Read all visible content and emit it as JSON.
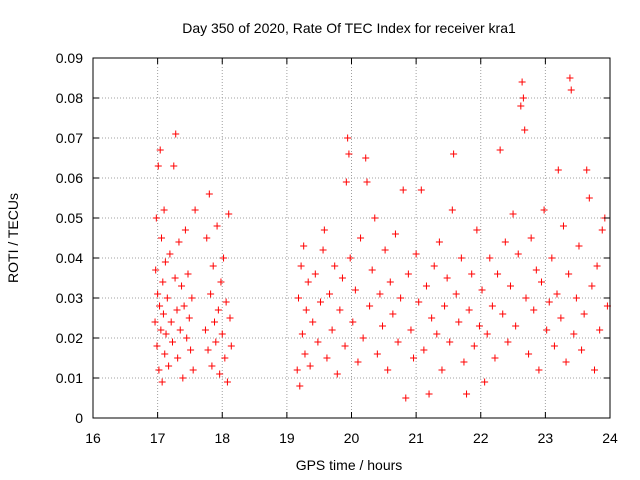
{
  "chart_data": {
    "type": "scatter",
    "title": "Day 350 of 2020, Rate Of TEC Index for receiver kra1",
    "xlabel": "GPS time / hours",
    "ylabel": "ROTI / TECUs",
    "xlim": [
      16,
      24
    ],
    "ylim": [
      0,
      0.09
    ],
    "xticks": [
      "16",
      "17",
      "18",
      "19",
      "20",
      "21",
      "22",
      "23",
      "24"
    ],
    "yticks": [
      "0",
      "0.01",
      "0.02",
      "0.03",
      "0.04",
      "0.05",
      "0.06",
      "0.07",
      "0.08",
      "0.09"
    ],
    "grid": true,
    "marker": "+",
    "color": "#ff0000",
    "series": [
      {
        "name": "ROTI",
        "points": [
          [
            16.96,
            0.024
          ],
          [
            16.97,
            0.037
          ],
          [
            16.98,
            0.05
          ],
          [
            16.99,
            0.018
          ],
          [
            17.0,
            0.031
          ],
          [
            17.01,
            0.063
          ],
          [
            17.02,
            0.012
          ],
          [
            17.03,
            0.028
          ],
          [
            17.04,
            0.067
          ],
          [
            17.05,
            0.022
          ],
          [
            17.06,
            0.045
          ],
          [
            17.07,
            0.009
          ],
          [
            17.08,
            0.034
          ],
          [
            17.09,
            0.026
          ],
          [
            17.1,
            0.052
          ],
          [
            17.11,
            0.016
          ],
          [
            17.12,
            0.039
          ],
          [
            17.13,
            0.021
          ],
          [
            17.15,
            0.03
          ],
          [
            17.17,
            0.013
          ],
          [
            17.19,
            0.041
          ],
          [
            17.21,
            0.024
          ],
          [
            17.23,
            0.019
          ],
          [
            17.25,
            0.063
          ],
          [
            17.27,
            0.035
          ],
          [
            17.28,
            0.071
          ],
          [
            17.3,
            0.027
          ],
          [
            17.31,
            0.015
          ],
          [
            17.33,
            0.044
          ],
          [
            17.35,
            0.022
          ],
          [
            17.37,
            0.033
          ],
          [
            17.39,
            0.01
          ],
          [
            17.41,
            0.028
          ],
          [
            17.43,
            0.047
          ],
          [
            17.45,
            0.02
          ],
          [
            17.47,
            0.036
          ],
          [
            17.49,
            0.025
          ],
          [
            17.51,
            0.017
          ],
          [
            17.53,
            0.03
          ],
          [
            17.55,
            0.012
          ],
          [
            17.58,
            0.052
          ],
          [
            17.74,
            0.022
          ],
          [
            17.76,
            0.045
          ],
          [
            17.78,
            0.017
          ],
          [
            17.8,
            0.056
          ],
          [
            17.82,
            0.031
          ],
          [
            17.84,
            0.013
          ],
          [
            17.86,
            0.038
          ],
          [
            17.88,
            0.024
          ],
          [
            17.9,
            0.019
          ],
          [
            17.92,
            0.048
          ],
          [
            17.94,
            0.027
          ],
          [
            17.96,
            0.011
          ],
          [
            17.98,
            0.034
          ],
          [
            18.0,
            0.021
          ],
          [
            18.02,
            0.04
          ],
          [
            18.04,
            0.015
          ],
          [
            18.06,
            0.029
          ],
          [
            18.08,
            0.009
          ],
          [
            18.1,
            0.051
          ],
          [
            18.12,
            0.025
          ],
          [
            18.14,
            0.018
          ],
          [
            19.16,
            0.012
          ],
          [
            19.18,
            0.03
          ],
          [
            19.2,
            0.008
          ],
          [
            19.22,
            0.038
          ],
          [
            19.24,
            0.021
          ],
          [
            19.26,
            0.043
          ],
          [
            19.28,
            0.016
          ],
          [
            19.3,
            0.027
          ],
          [
            19.33,
            0.034
          ],
          [
            19.36,
            0.013
          ],
          [
            19.4,
            0.024
          ],
          [
            19.44,
            0.036
          ],
          [
            19.48,
            0.019
          ],
          [
            19.52,
            0.029
          ],
          [
            19.56,
            0.042
          ],
          [
            19.58,
            0.047
          ],
          [
            19.62,
            0.015
          ],
          [
            19.66,
            0.031
          ],
          [
            19.7,
            0.022
          ],
          [
            19.74,
            0.038
          ],
          [
            19.78,
            0.011
          ],
          [
            19.82,
            0.027
          ],
          [
            19.86,
            0.035
          ],
          [
            19.9,
            0.018
          ],
          [
            19.92,
            0.059
          ],
          [
            19.94,
            0.07
          ],
          [
            19.96,
            0.066
          ],
          [
            19.98,
            0.04
          ],
          [
            20.02,
            0.024
          ],
          [
            20.06,
            0.032
          ],
          [
            20.1,
            0.014
          ],
          [
            20.14,
            0.045
          ],
          [
            20.18,
            0.02
          ],
          [
            20.22,
            0.065
          ],
          [
            20.24,
            0.059
          ],
          [
            20.28,
            0.028
          ],
          [
            20.32,
            0.037
          ],
          [
            20.36,
            0.05
          ],
          [
            20.4,
            0.016
          ],
          [
            20.44,
            0.031
          ],
          [
            20.48,
            0.023
          ],
          [
            20.52,
            0.042
          ],
          [
            20.56,
            0.012
          ],
          [
            20.6,
            0.034
          ],
          [
            20.64,
            0.026
          ],
          [
            20.68,
            0.046
          ],
          [
            20.72,
            0.019
          ],
          [
            20.76,
            0.03
          ],
          [
            20.8,
            0.057
          ],
          [
            20.84,
            0.005
          ],
          [
            20.88,
            0.036
          ],
          [
            20.92,
            0.022
          ],
          [
            20.96,
            0.015
          ],
          [
            21.0,
            0.041
          ],
          [
            21.04,
            0.029
          ],
          [
            21.08,
            0.057
          ],
          [
            21.12,
            0.017
          ],
          [
            21.16,
            0.033
          ],
          [
            21.2,
            0.006
          ],
          [
            21.24,
            0.025
          ],
          [
            21.28,
            0.038
          ],
          [
            21.32,
            0.021
          ],
          [
            21.36,
            0.044
          ],
          [
            21.4,
            0.012
          ],
          [
            21.44,
            0.028
          ],
          [
            21.48,
            0.035
          ],
          [
            21.52,
            0.019
          ],
          [
            21.56,
            0.052
          ],
          [
            21.58,
            0.066
          ],
          [
            21.62,
            0.031
          ],
          [
            21.66,
            0.024
          ],
          [
            21.7,
            0.04
          ],
          [
            21.74,
            0.014
          ],
          [
            21.78,
            0.006
          ],
          [
            21.82,
            0.027
          ],
          [
            21.86,
            0.036
          ],
          [
            21.9,
            0.018
          ],
          [
            21.94,
            0.047
          ],
          [
            21.98,
            0.023
          ],
          [
            22.02,
            0.032
          ],
          [
            22.06,
            0.009
          ],
          [
            22.1,
            0.021
          ],
          [
            22.14,
            0.04
          ],
          [
            22.18,
            0.028
          ],
          [
            22.22,
            0.015
          ],
          [
            22.26,
            0.036
          ],
          [
            22.3,
            0.067
          ],
          [
            22.34,
            0.026
          ],
          [
            22.38,
            0.044
          ],
          [
            22.42,
            0.019
          ],
          [
            22.46,
            0.033
          ],
          [
            22.5,
            0.051
          ],
          [
            22.54,
            0.023
          ],
          [
            22.58,
            0.041
          ],
          [
            22.62,
            0.078
          ],
          [
            22.64,
            0.084
          ],
          [
            22.66,
            0.08
          ],
          [
            22.68,
            0.072
          ],
          [
            22.7,
            0.03
          ],
          [
            22.74,
            0.016
          ],
          [
            22.78,
            0.045
          ],
          [
            22.82,
            0.027
          ],
          [
            22.86,
            0.037
          ],
          [
            22.9,
            0.012
          ],
          [
            22.94,
            0.034
          ],
          [
            22.98,
            0.052
          ],
          [
            23.02,
            0.022
          ],
          [
            23.06,
            0.029
          ],
          [
            23.1,
            0.04
          ],
          [
            23.14,
            0.018
          ],
          [
            23.18,
            0.031
          ],
          [
            23.2,
            0.062
          ],
          [
            23.24,
            0.025
          ],
          [
            23.28,
            0.048
          ],
          [
            23.32,
            0.014
          ],
          [
            23.36,
            0.036
          ],
          [
            23.38,
            0.085
          ],
          [
            23.4,
            0.082
          ],
          [
            23.44,
            0.021
          ],
          [
            23.48,
            0.03
          ],
          [
            23.52,
            0.043
          ],
          [
            23.56,
            0.017
          ],
          [
            23.6,
            0.026
          ],
          [
            23.64,
            0.062
          ],
          [
            23.68,
            0.055
          ],
          [
            23.72,
            0.033
          ],
          [
            23.76,
            0.012
          ],
          [
            23.8,
            0.038
          ],
          [
            23.84,
            0.022
          ],
          [
            23.88,
            0.047
          ],
          [
            23.92,
            0.05
          ],
          [
            23.96,
            0.028
          ]
        ]
      }
    ]
  }
}
